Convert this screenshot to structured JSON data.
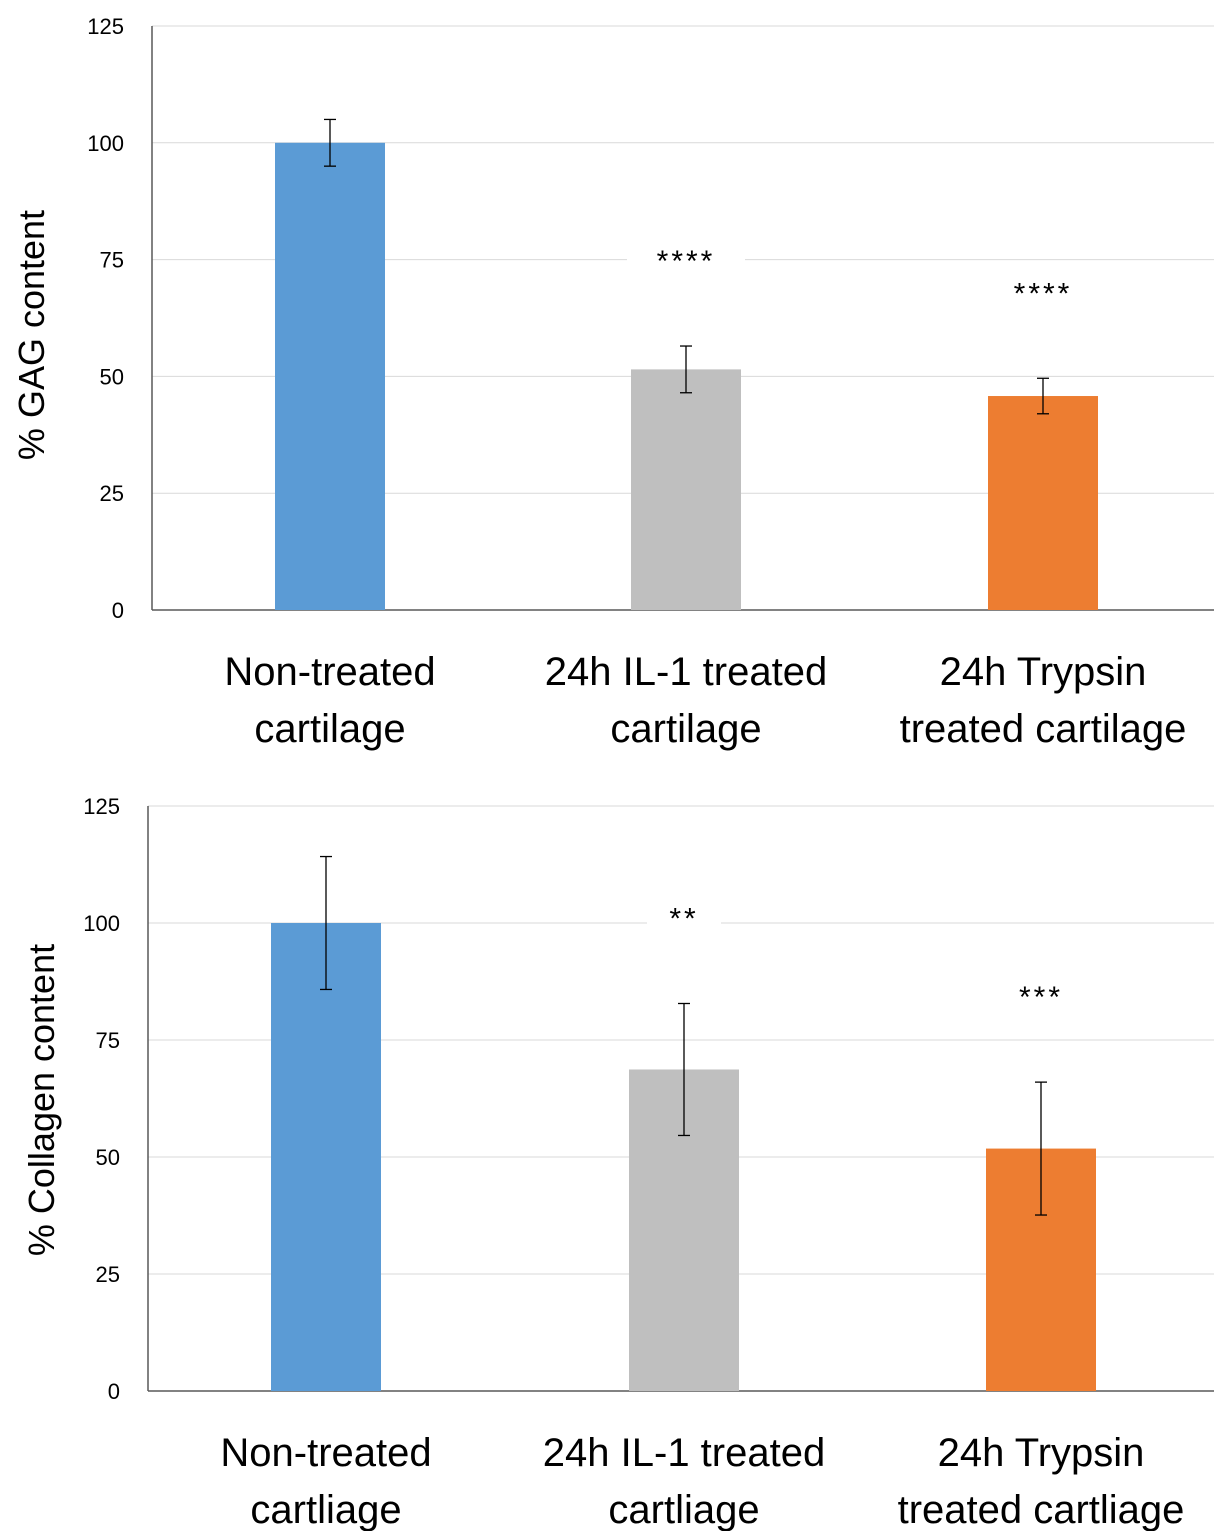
{
  "chart_data": [
    {
      "type": "bar",
      "ylabel": "% GAG content",
      "xlabel": "",
      "ylim": [
        0,
        125
      ],
      "yticks": [
        0,
        25,
        50,
        75,
        100,
        125
      ],
      "grid": true,
      "categories": [
        [
          "Non-treated",
          "cartilage"
        ],
        [
          "24h IL-1 treated",
          "cartilage"
        ],
        [
          "24h Trypsin",
          "treated cartilage"
        ]
      ],
      "values": [
        100,
        51.5,
        45.8
      ],
      "errors": [
        5,
        5,
        3.8
      ],
      "significance": [
        "",
        "****",
        "****"
      ],
      "colors": [
        "#5b9bd5",
        "#bfbfbf",
        "#ed7d31"
      ]
    },
    {
      "type": "bar",
      "ylabel": "% Collagen content",
      "xlabel": "",
      "ylim": [
        0,
        125
      ],
      "yticks": [
        0,
        25,
        50,
        75,
        100,
        125
      ],
      "grid": true,
      "categories": [
        [
          "Non-treated",
          "cartliage"
        ],
        [
          "24h IL-1 treated",
          "cartliage"
        ],
        [
          "24h Trypsin",
          "treated cartliage"
        ]
      ],
      "values": [
        100,
        68.7,
        51.8
      ],
      "errors": [
        14.2,
        14.1,
        14.2
      ],
      "significance": [
        "",
        "**",
        "***"
      ],
      "colors": [
        "#5b9bd5",
        "#bfbfbf",
        "#ed7d31"
      ]
    }
  ]
}
